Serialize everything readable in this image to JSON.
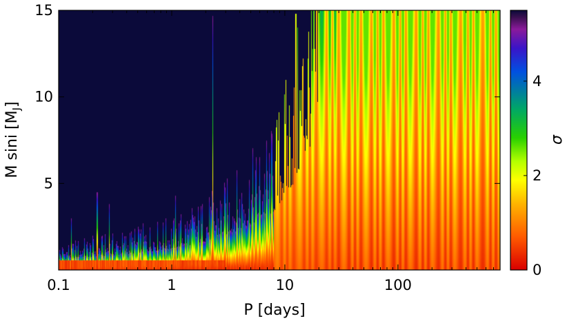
{
  "chart_data": {
    "type": "heatmap",
    "xlabel": "P [days]",
    "ylabel": "M sini [M",
    "ylabel_sub": "J",
    "ylabel_close": "]",
    "colorbar_label": "σ",
    "x_scale": "log",
    "xlim": [
      0.1,
      800
    ],
    "ylim": [
      0,
      15
    ],
    "clim": [
      0,
      5.5
    ],
    "x_ticks": [
      {
        "value": 0.1,
        "label": "0.1"
      },
      {
        "value": 1,
        "label": "1"
      },
      {
        "value": 10,
        "label": "10"
      },
      {
        "value": 100,
        "label": "100"
      }
    ],
    "y_ticks": [
      {
        "value": 5,
        "label": "5"
      },
      {
        "value": 10,
        "label": "10"
      },
      {
        "value": 15,
        "label": "15"
      }
    ],
    "colorbar_ticks": [
      {
        "value": 0,
        "label": "0"
      },
      {
        "value": 2,
        "label": "2"
      },
      {
        "value": 4,
        "label": "4"
      }
    ],
    "colormap": [
      "#d90000",
      "#ff5a00",
      "#ffb400",
      "#ffff00",
      "#b4ff00",
      "#28d000",
      "#00a864",
      "#0050e0",
      "#3a14c8",
      "#8a1a9a",
      "#3a1050",
      "#0b0a3a"
    ],
    "colormap_stops": [
      0,
      0.7,
      1.4,
      1.9,
      2.3,
      2.8,
      3.4,
      4.2,
      4.7,
      5.1,
      5.35,
      5.5
    ],
    "detection_boundary": [
      {
        "P": 0.1,
        "M": 1.1
      },
      {
        "P": 0.15,
        "M": 1.3
      },
      {
        "P": 0.3,
        "M": 1.5
      },
      {
        "P": 0.6,
        "M": 1.9
      },
      {
        "P": 1.0,
        "M": 2.2
      },
      {
        "P": 2.0,
        "M": 3.0
      },
      {
        "P": 4.0,
        "M": 4.2
      },
      {
        "P": 8.0,
        "M": 6.0
      },
      {
        "P": 12.0,
        "M": 9.0
      },
      {
        "P": 20.0,
        "M": 15.0
      }
    ],
    "spikes": [
      {
        "P": 0.13,
        "M": 3.0
      },
      {
        "P": 0.22,
        "M": 4.5
      },
      {
        "P": 0.28,
        "M": 3.8
      },
      {
        "P": 1.08,
        "M": 4.3
      },
      {
        "P": 2.3,
        "M": 14.7
      },
      {
        "P": 12.5,
        "M": 14.8
      }
    ]
  }
}
